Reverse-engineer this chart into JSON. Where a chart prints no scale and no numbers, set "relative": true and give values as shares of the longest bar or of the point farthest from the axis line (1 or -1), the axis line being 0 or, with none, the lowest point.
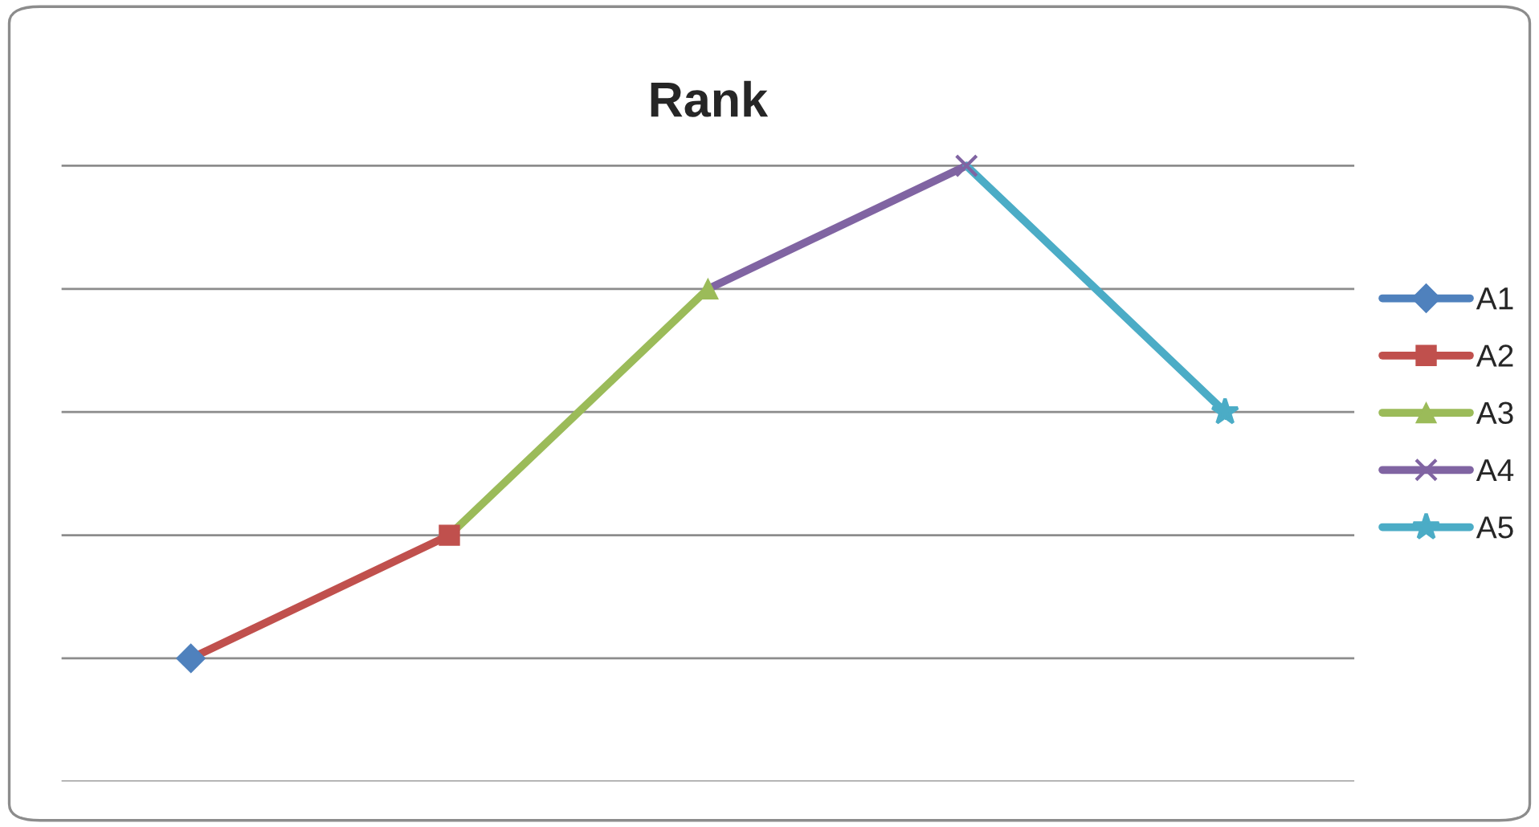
{
  "chart_data": {
    "type": "line",
    "title": "Rank",
    "relative": true,
    "categories": [
      null,
      null,
      null,
      null,
      null
    ],
    "series": [
      {
        "name": "A1",
        "color": "#4f81bd",
        "marker": "diamond",
        "values": [
          0.2,
          null,
          null,
          null,
          null
        ]
      },
      {
        "name": "A2",
        "color": "#c0504d",
        "marker": "square",
        "values": [
          0.2,
          0.4,
          null,
          null,
          null
        ]
      },
      {
        "name": "A3",
        "color": "#9bbb59",
        "marker": "triangle",
        "values": [
          null,
          0.4,
          0.8,
          null,
          null
        ]
      },
      {
        "name": "A4",
        "color": "#8064a2",
        "marker": "cross",
        "values": [
          null,
          null,
          0.8,
          1,
          null
        ]
      },
      {
        "name": "A5",
        "color": "#4bacc6",
        "marker": "star",
        "values": [
          null,
          null,
          null,
          1,
          0.6
        ]
      }
    ],
    "grid": "y",
    "legend": "right",
    "line_style": "solid"
  }
}
